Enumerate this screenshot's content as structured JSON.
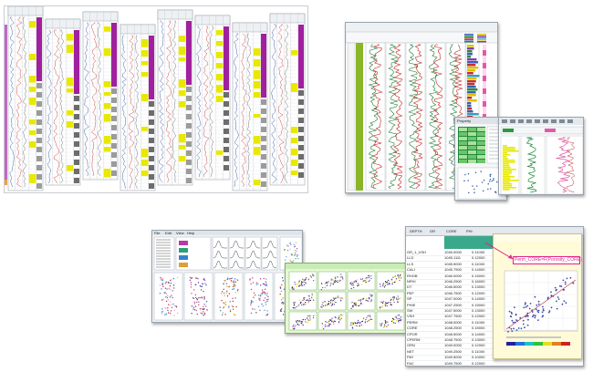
{
  "colors": {
    "magenta": "#a020a0",
    "yellow": "#e8e800",
    "olive_green": "#8ab528",
    "curve_red": "#c0201c",
    "curve_green": "#1a7a30",
    "light_green_bg": "#e6f7d6",
    "teal_header": "#3aa88a",
    "scatter_bg_yellow": "#fffbd8",
    "annotation_pink": "#e0208c"
  },
  "log_correlation": {
    "tracks": 8
  },
  "well_log_view": {
    "depth_labels": [
      "",
      "",
      "",
      "",
      "",
      "",
      "",
      "",
      "",
      "",
      "",
      ""
    ]
  },
  "property_window": {
    "title": "Property"
  },
  "multi_plot_window": {
    "menu": [
      "File",
      "Edit",
      "View",
      "Help"
    ]
  },
  "table_window": {
    "tabs": [
      "DEPTH",
      "GR",
      "CORE",
      "PHI"
    ],
    "rows": [
      {
        "name": "GR_1_VSH",
        "d": "1045.0000",
        "v": "0.11000"
      },
      {
        "name": "LLD",
        "d": "1045.1111",
        "v": "0.12000"
      },
      {
        "name": "LLS",
        "d": "1045.5000",
        "v": "0.11000"
      },
      {
        "name": "CALI",
        "d": "1045.7500",
        "v": "0.14000"
      },
      {
        "name": "RHOB",
        "d": "1046.0000",
        "v": "0.15000"
      },
      {
        "name": "NPHI",
        "d": "1046.2500",
        "v": "0.16000"
      },
      {
        "name": "DT",
        "d": "1046.5000",
        "v": "0.13000"
      },
      {
        "name": "PEF",
        "d": "1046.7500",
        "v": "0.12000"
      },
      {
        "name": "SP",
        "d": "1047.0000",
        "v": "0.14000"
      },
      {
        "name": "PHIE",
        "d": "1047.2500",
        "v": "0.15000"
      },
      {
        "name": "SW",
        "d": "1047.5000",
        "v": "0.13000"
      },
      {
        "name": "VSH",
        "d": "1047.7500",
        "v": "0.12000"
      },
      {
        "name": "PERM",
        "d": "1048.0000",
        "v": "0.11000"
      },
      {
        "name": "CORE",
        "d": "1048.2500",
        "v": "0.15000"
      },
      {
        "name": "CPOR",
        "d": "1048.5000",
        "v": "0.14000"
      },
      {
        "name": "CPERM",
        "d": "1048.7500",
        "v": "0.13000"
      },
      {
        "name": "GRN",
        "d": "1049.0000",
        "v": "0.12000"
      },
      {
        "name": "NET",
        "d": "1049.2500",
        "v": "0.11000"
      },
      {
        "name": "PAY",
        "d": "1049.5000",
        "v": "0.10000"
      },
      {
        "name": "FAC",
        "d": "1049.7500",
        "v": "0.12000"
      }
    ]
  },
  "crossplot": {
    "annotation": "Perm_CORE=F(Porosity_CORE)"
  }
}
